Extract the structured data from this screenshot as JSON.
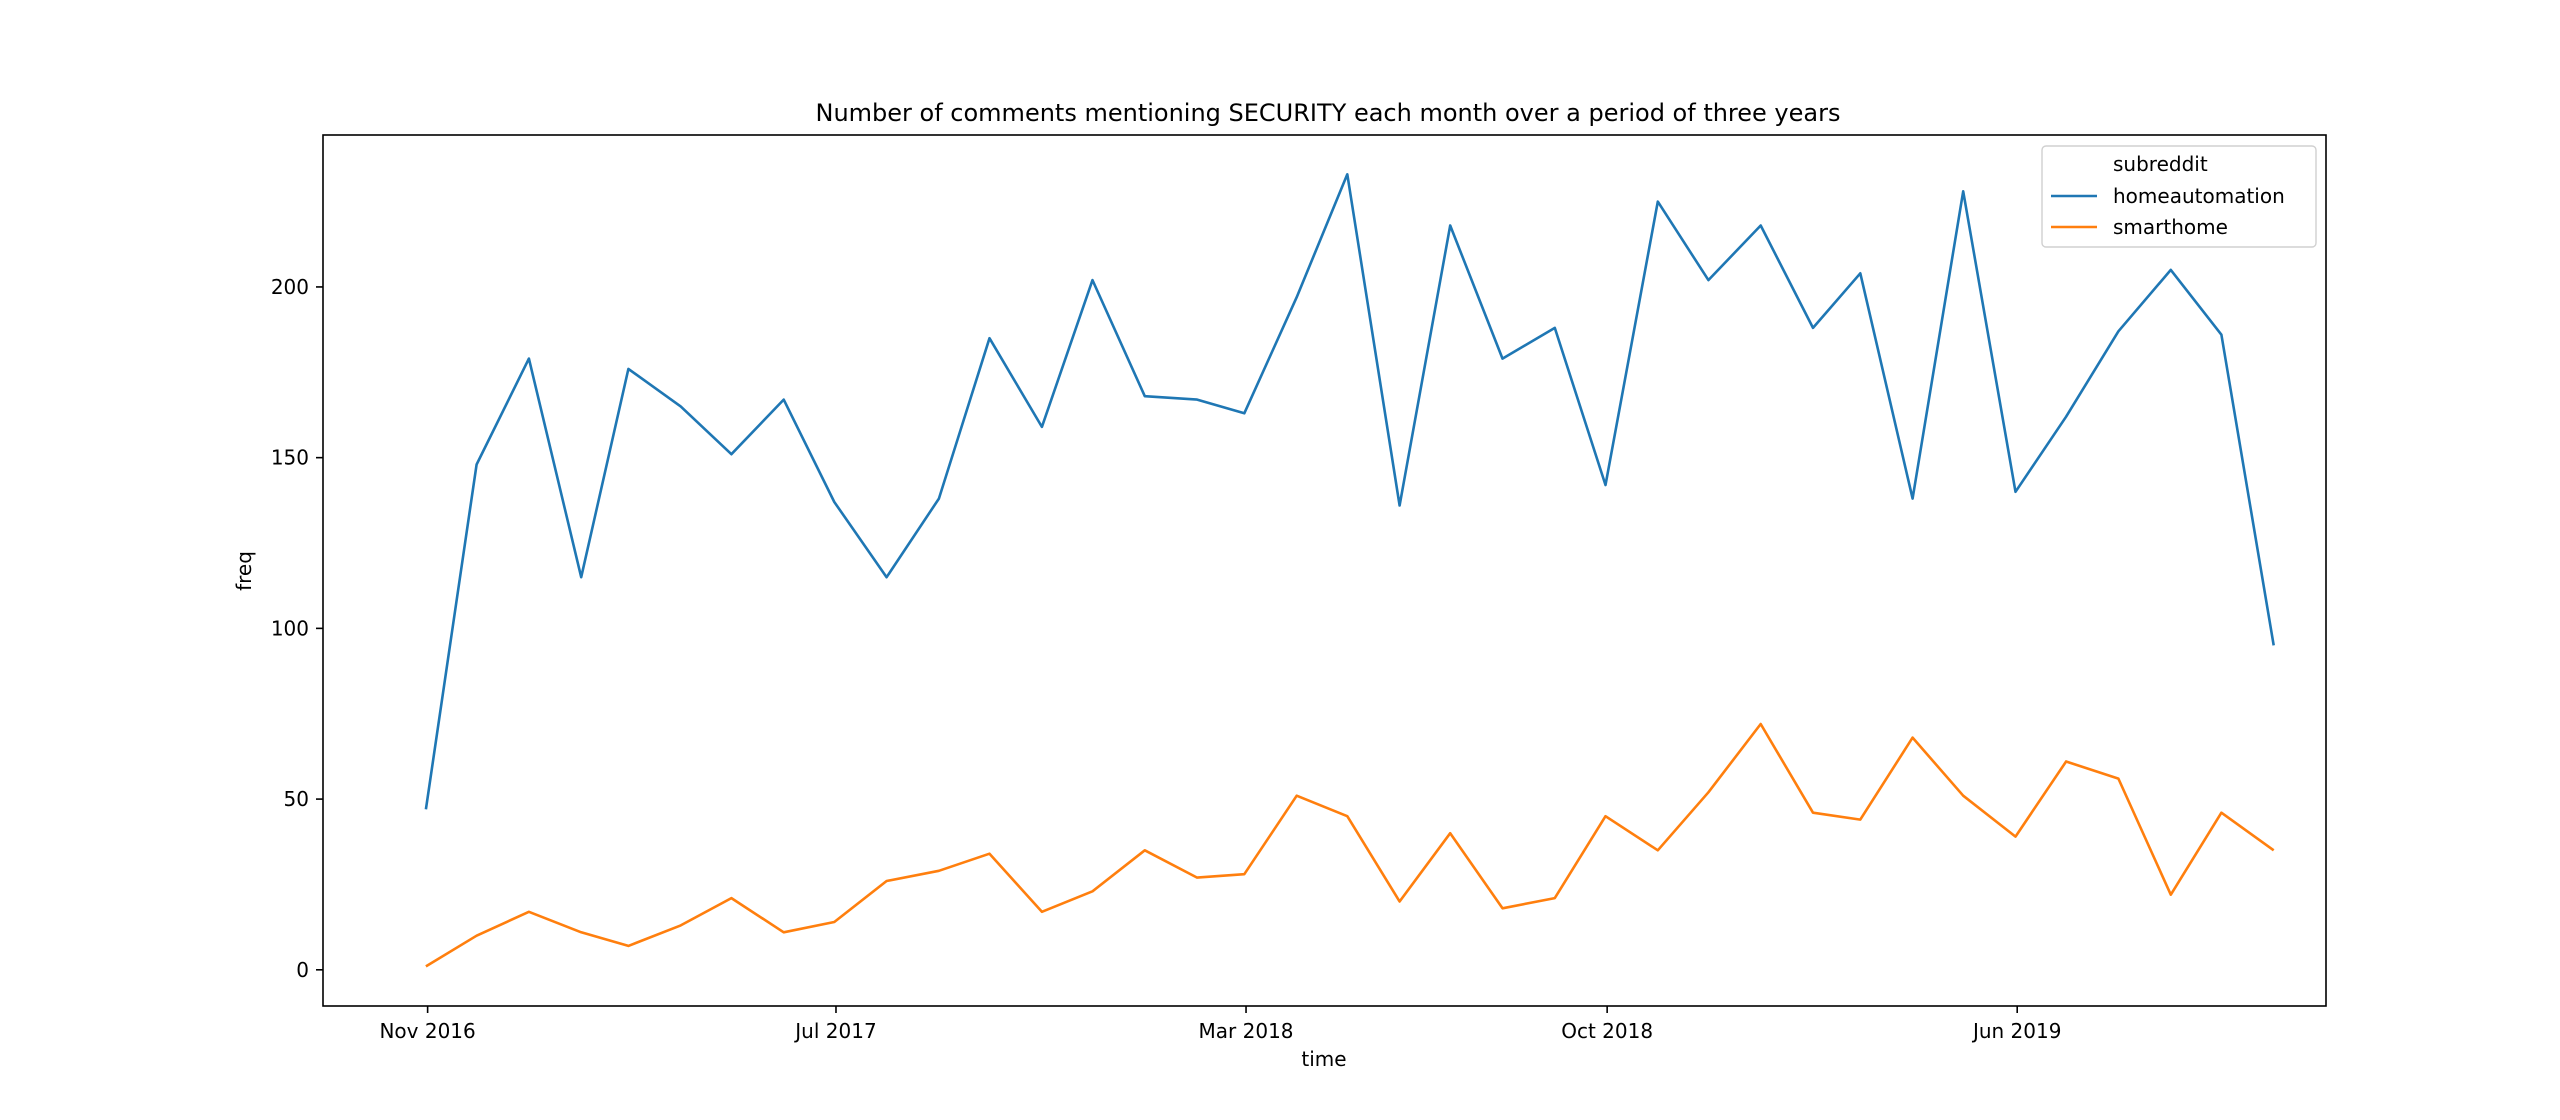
{
  "chart_data": {
    "type": "line",
    "title": "Number of comments mentioning SECURITY each month over a period of three years",
    "xlabel": "time",
    "ylabel": "freq",
    "x": [
      "2016-10-31",
      "2016-11-30",
      "2016-12-31",
      "2017-01-31",
      "2017-02-28",
      "2017-03-31",
      "2017-04-30",
      "2017-05-31",
      "2017-06-30",
      "2017-07-31",
      "2017-08-31",
      "2017-09-30",
      "2017-10-31",
      "2017-11-30",
      "2017-12-31",
      "2018-01-31",
      "2018-02-28",
      "2018-03-31",
      "2018-04-30",
      "2018-05-31",
      "2018-06-30",
      "2018-07-31",
      "2018-08-31",
      "2018-09-30",
      "2018-10-31",
      "2018-11-30",
      "2018-12-31",
      "2019-01-31",
      "2019-02-28",
      "2019-03-31",
      "2019-04-30",
      "2019-05-31",
      "2019-06-30",
      "2019-07-31",
      "2019-08-31",
      "2019-09-30",
      "2019-10-31"
    ],
    "xticks": [
      {
        "date": "2016-11-01",
        "label": "Nov 2016"
      },
      {
        "date": "2017-07-01",
        "label": "Jul 2017"
      },
      {
        "date": "2018-03-01",
        "label": "Mar 2018"
      },
      {
        "date": "2018-10-01",
        "label": "Oct 2018"
      },
      {
        "date": "2019-06-01",
        "label": "Jun 2019"
      }
    ],
    "xlim": [
      "2016-08-31",
      "2019-12-01"
    ],
    "yticks": [
      0,
      50,
      100,
      150,
      200
    ],
    "ylim": [
      -10.6,
      244.5
    ],
    "legend": {
      "title": "subreddit",
      "placement": "top-right"
    },
    "grid": false,
    "series": [
      {
        "name": "homeautomation",
        "color": "#1f77b4",
        "values": [
          47,
          148,
          179,
          115,
          176,
          165,
          151,
          167,
          137,
          115,
          138,
          185,
          159,
          202,
          168,
          167,
          163,
          197,
          233,
          136,
          218,
          179,
          188,
          142,
          225,
          202,
          218,
          188,
          204,
          138,
          228,
          140,
          162,
          187,
          205,
          186,
          95
        ]
      },
      {
        "name": "smarthome",
        "color": "#ff7f0e",
        "values": [
          1,
          10,
          17,
          11,
          7,
          13,
          21,
          11,
          14,
          26,
          29,
          34,
          17,
          23,
          35,
          27,
          28,
          51,
          45,
          20,
          40,
          18,
          21,
          45,
          35,
          52,
          72,
          46,
          44,
          68,
          51,
          39,
          61,
          56,
          22,
          46,
          35
        ]
      }
    ]
  }
}
